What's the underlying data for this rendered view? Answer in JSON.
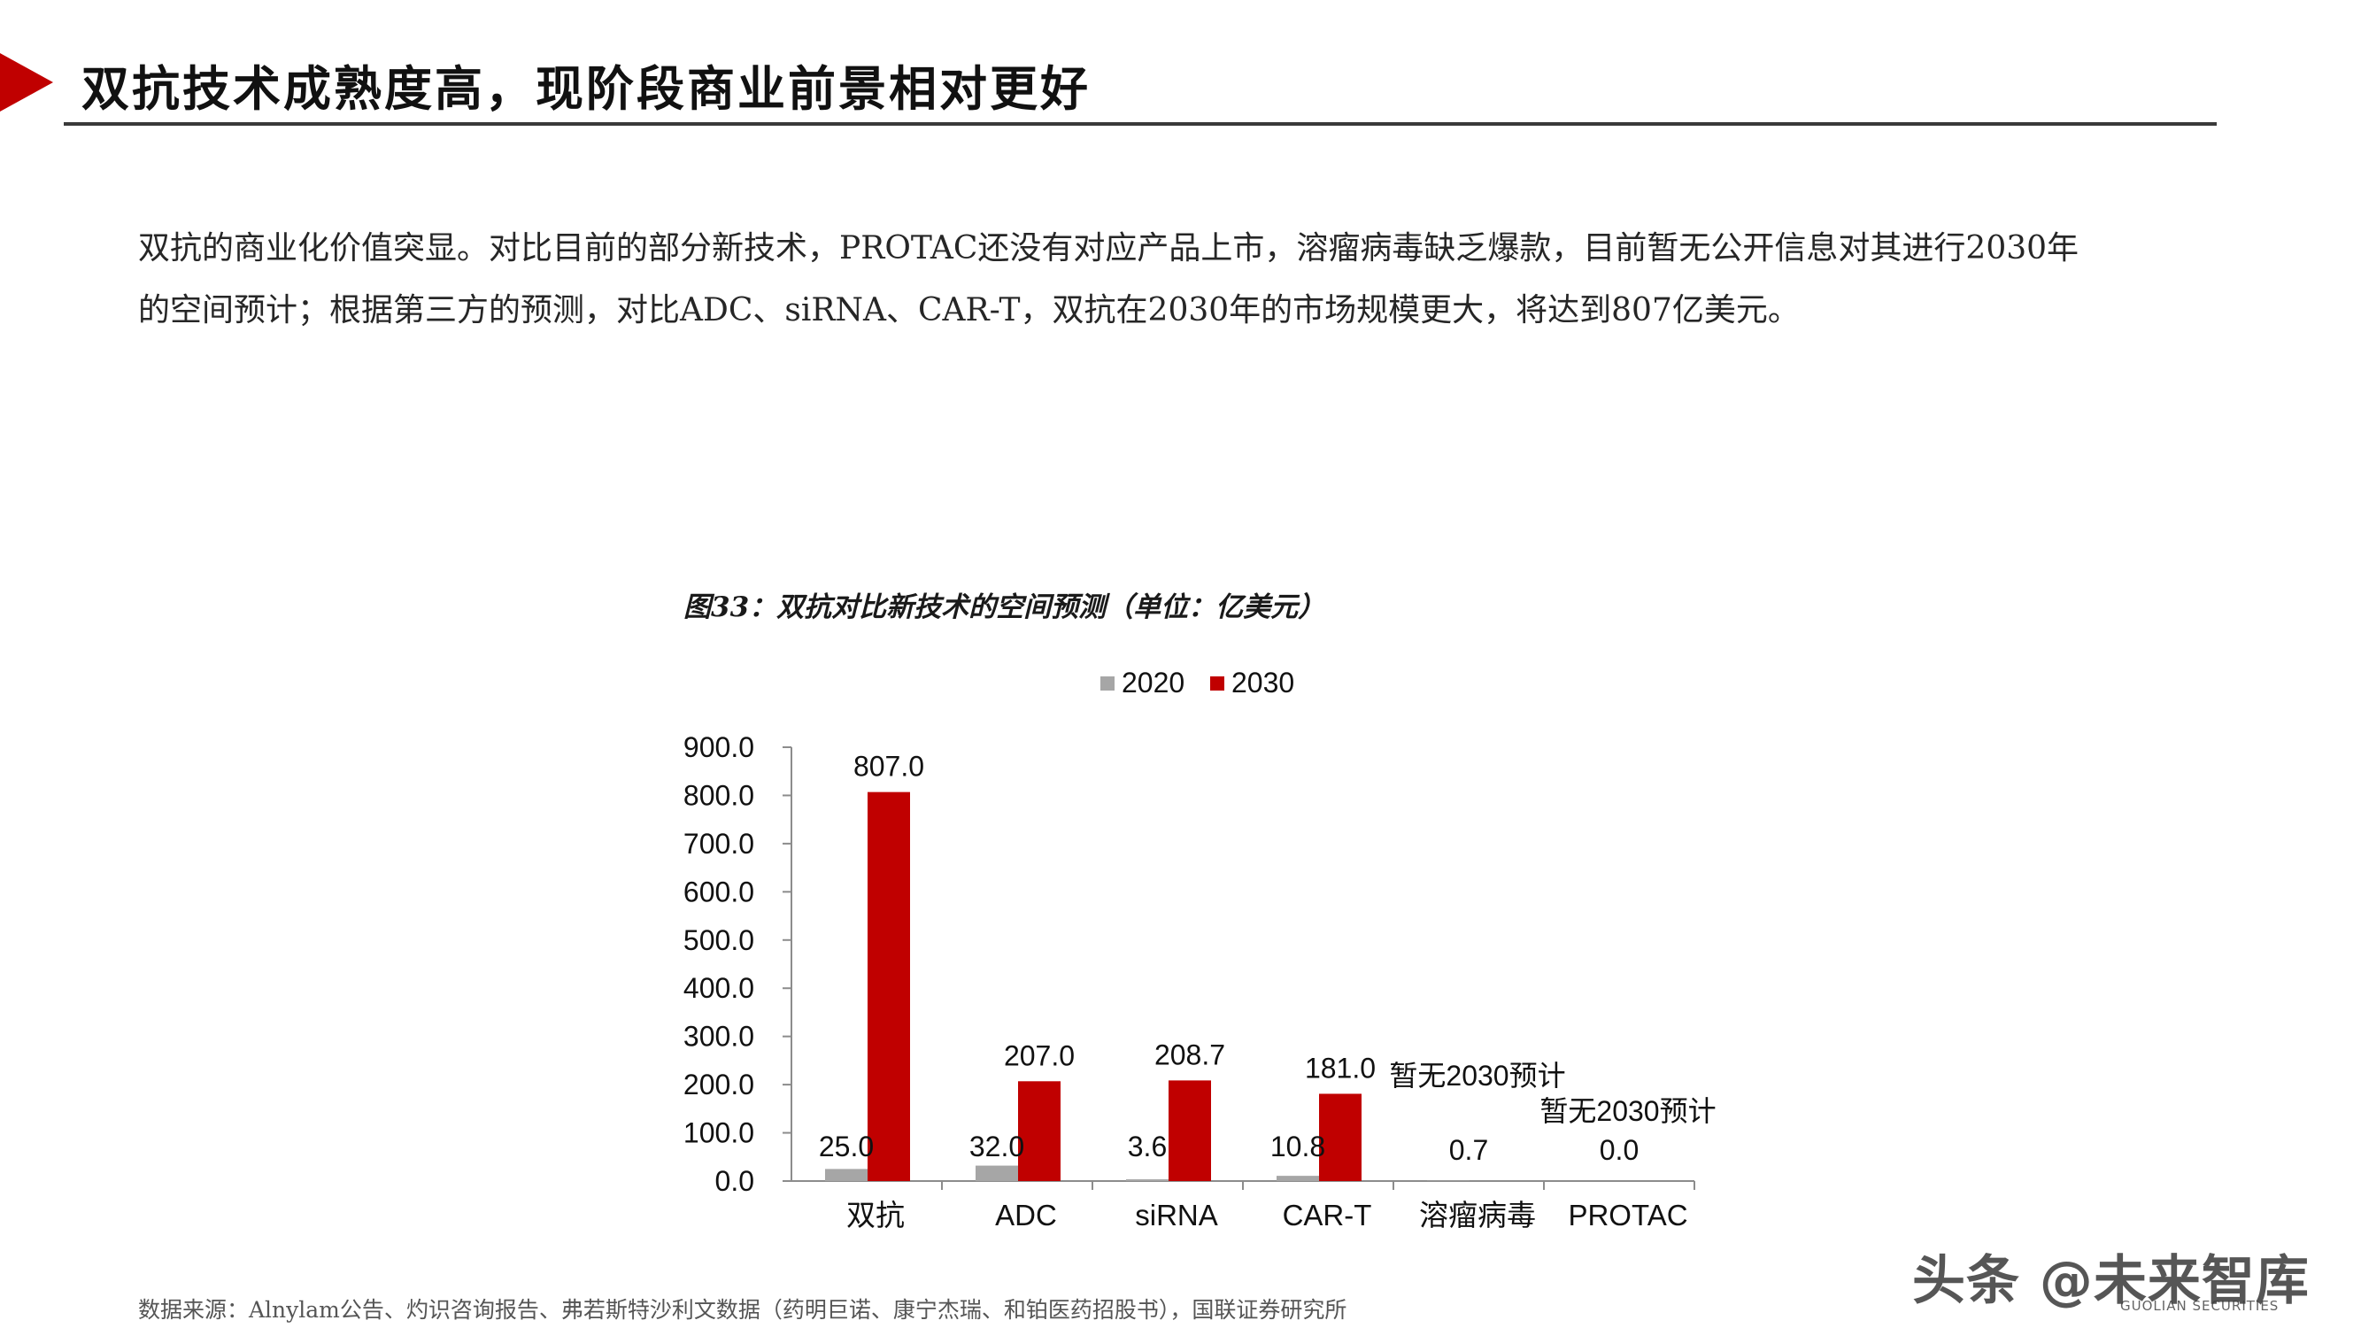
{
  "header": {
    "title": "双抗技术成熟度高，现阶段商业前景相对更好"
  },
  "summary": {
    "line1": "双抗的商业化价值突显。对比目前的部分新技术，PROTAC还没有对应产品上市，溶瘤病毒缺乏爆款，目前暂无公开信息对其进行2030年",
    "line2": "的空间预计；根据第三方的预测，对比ADC、siRNA、CAR-T，双抗在2030年的市场规模更大，将达到807亿美元。"
  },
  "chart_data": {
    "type": "bar",
    "title": "图33：双抗对比新技术的空间预测（单位：亿美元）",
    "categories": [
      "双抗",
      "ADC",
      "siRNA",
      "CAR-T",
      "溶瘤病毒",
      "PROTAC"
    ],
    "series": [
      {
        "name": "2020",
        "color": "#a6a6a6",
        "values": [
          25.0,
          32.0,
          3.6,
          10.8,
          0.7,
          0.0
        ],
        "labels": [
          "25.0",
          "32.0",
          "3.6",
          "10.8",
          "0.7",
          "0.0"
        ]
      },
      {
        "name": "2030",
        "color": "#c00000",
        "values": [
          807.0,
          207.0,
          208.7,
          181.0,
          null,
          null
        ],
        "labels": [
          "807.0",
          "207.0",
          "208.7",
          "181.0",
          "暂无2030预计",
          "暂无2030预计"
        ]
      }
    ],
    "ylim": [
      0,
      900
    ],
    "yticks": [
      "0.0",
      "100.0",
      "200.0",
      "300.0",
      "400.0",
      "500.0",
      "600.0",
      "700.0",
      "800.0",
      "900.0"
    ],
    "xlabel": "",
    "ylabel": "",
    "grid": false,
    "legend_position": "top"
  },
  "footer": {
    "source": "数据来源：Alnylam公告、灼识咨询报告、弗若斯特沙利文数据（药明巨诺、康宁杰瑞、和铂医药招股书），国联证券研究所",
    "watermark": "头条 @未来智库",
    "watermark_sub": "GUOLIAN SECURITIES"
  }
}
